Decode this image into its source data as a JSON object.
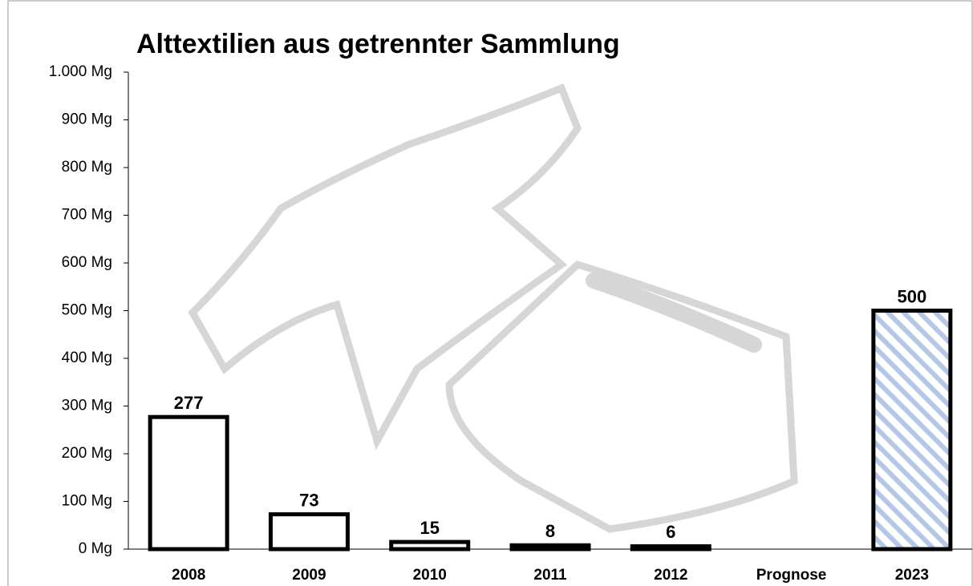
{
  "chart_data": {
    "type": "bar",
    "title": "Alttextilien aus getrennter Sammlung",
    "categories": [
      "2008",
      "2009",
      "2010",
      "2011",
      "2012",
      "Prognose",
      "2023"
    ],
    "values": [
      277,
      73,
      15,
      8,
      6,
      null,
      500
    ],
    "color": "#ffffff",
    "edge_color": "#000000",
    "hatch_color": "#b4c7e7",
    "hatched": [
      false,
      false,
      false,
      false,
      false,
      false,
      true
    ],
    "ylim": [
      0,
      1000
    ],
    "yticks": [
      {
        "value": 0,
        "label": "0 Mg"
      },
      {
        "value": 100,
        "label": "100 Mg"
      },
      {
        "value": 200,
        "label": "200 Mg"
      },
      {
        "value": 300,
        "label": "300 Mg"
      },
      {
        "value": 400,
        "label": "400 Mg"
      },
      {
        "value": 500,
        "label": "500 Mg"
      },
      {
        "value": 600,
        "label": "600 Mg"
      },
      {
        "value": 700,
        "label": "700 Mg"
      },
      {
        "value": 800,
        "label": "800 Mg"
      },
      {
        "value": 900,
        "label": "900 Mg"
      },
      {
        "value": 1000,
        "label": "1.000 Mg"
      }
    ],
    "grid": false
  }
}
